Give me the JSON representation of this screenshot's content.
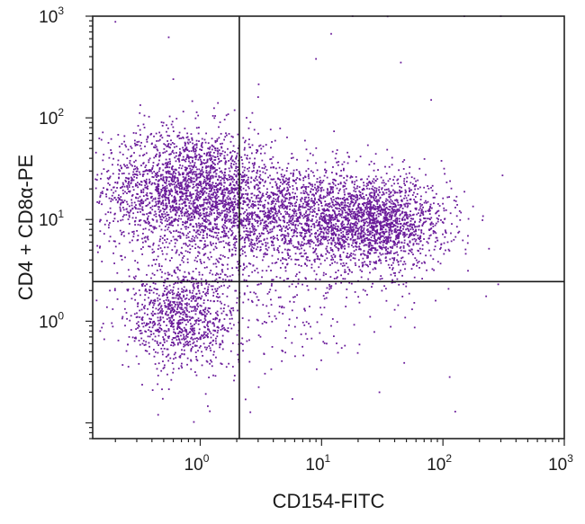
{
  "chart_data": {
    "type": "scatter",
    "title": "",
    "xlabel": "CD154-FITC",
    "ylabel": "CD4 + CD8α-PE",
    "xscale": "log",
    "yscale": "log",
    "xlim": [
      0.13,
      1000
    ],
    "ylim": [
      0.07,
      1000
    ],
    "x_ticks": [
      {
        "base": "10",
        "exp": "0",
        "value": 1
      },
      {
        "base": "10",
        "exp": "1",
        "value": 10
      },
      {
        "base": "10",
        "exp": "2",
        "value": 100
      },
      {
        "base": "10",
        "exp": "3",
        "value": 1000
      }
    ],
    "y_ticks": [
      {
        "base": "10",
        "exp": "0",
        "value": 1
      },
      {
        "base": "10",
        "exp": "1",
        "value": 10
      },
      {
        "base": "10",
        "exp": "2",
        "value": 100
      },
      {
        "base": "10",
        "exp": "3",
        "value": 1000
      }
    ],
    "gates": {
      "x": 2.1,
      "y": 2.45
    },
    "grid": false,
    "legend": "none",
    "point_color": "#6a1b9a",
    "populations": [
      {
        "name": "",
        "center": [
          0.8,
          20
        ],
        "spread_decades": [
          0.35,
          0.3
        ],
        "count": 2200
      },
      {
        "name": "",
        "center": [
          30,
          9
        ],
        "spread_decades": [
          0.28,
          0.22
        ],
        "count": 1500
      },
      {
        "name": "",
        "center": [
          6,
          11
        ],
        "spread_decades": [
          0.45,
          0.25
        ],
        "count": 1700
      },
      {
        "name": "",
        "center": [
          0.7,
          1.05
        ],
        "spread_decades": [
          0.22,
          0.25
        ],
        "count": 900
      },
      {
        "name": "",
        "center": [
          3,
          2.5
        ],
        "spread_decades": [
          0.6,
          0.45
        ],
        "count": 500
      }
    ],
    "outliers": [
      [
        0.2,
        880
      ],
      [
        0.55,
        620
      ],
      [
        0.6,
        240
      ],
      [
        12,
        670
      ],
      [
        9,
        380
      ],
      [
        45,
        350
      ],
      [
        80,
        150
      ],
      [
        3,
        160
      ],
      [
        1.4,
        140
      ],
      [
        18,
        1000
      ],
      [
        35,
        995
      ],
      [
        150,
        998
      ],
      [
        300,
        1000
      ],
      [
        0.25,
        40
      ],
      [
        0.18,
        2
      ],
      [
        0.14,
        1.6
      ],
      [
        0.45,
        0.12
      ],
      [
        12,
        0.9
      ],
      [
        0.15,
        0.8
      ],
      [
        1.2,
        0.13
      ],
      [
        25,
        3
      ]
    ]
  }
}
